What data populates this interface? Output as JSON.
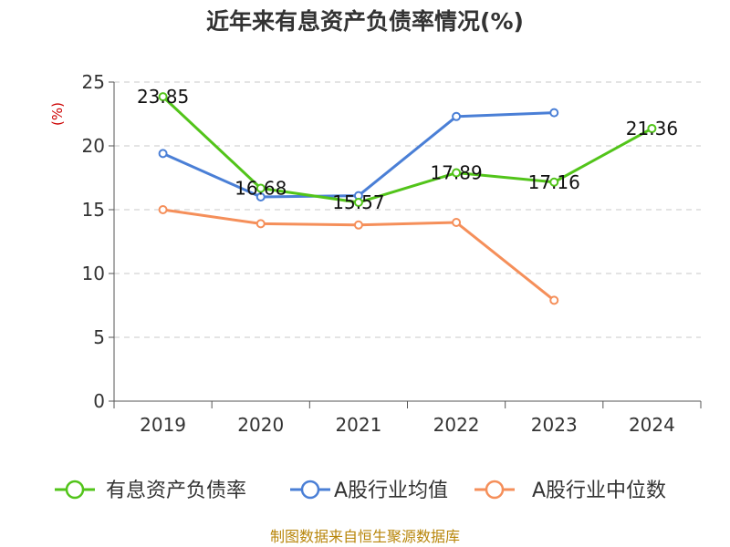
{
  "chart_data": {
    "type": "line",
    "title": "近年来有息资产负债率情况(%)",
    "ylabel": "(%)",
    "xlabel": "",
    "categories": [
      "2019",
      "2020",
      "2021",
      "2022",
      "2023",
      "2024"
    ],
    "ylim": [
      0,
      25
    ],
    "yticks": [
      0,
      5,
      10,
      15,
      20,
      25
    ],
    "grid": true,
    "legend_position": "bottom",
    "series": [
      {
        "name": "有息资产负债率",
        "color": "#52c41a",
        "values": [
          23.85,
          16.68,
          15.57,
          17.89,
          17.16,
          21.36
        ],
        "labels": [
          "23.85",
          "16.68",
          "15.57",
          "17.89",
          "17.16",
          "21.36"
        ]
      },
      {
        "name": "A股行业均值",
        "color": "#4a7fd6",
        "values": [
          19.4,
          16.0,
          16.1,
          22.3,
          22.6,
          null
        ]
      },
      {
        "name": "A股行业中位数",
        "color": "#f58f5a",
        "values": [
          15.0,
          13.9,
          13.8,
          14.0,
          7.9,
          null
        ]
      }
    ]
  },
  "source": "制图数据来自恒生聚源数据库"
}
